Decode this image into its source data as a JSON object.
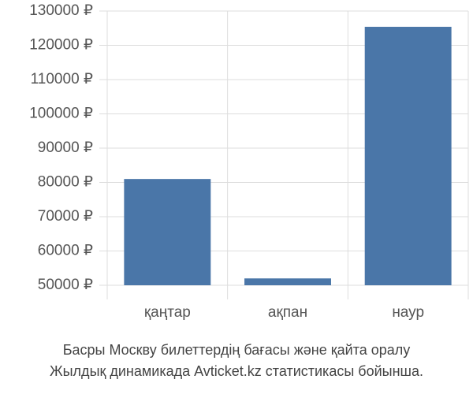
{
  "chart_data": {
    "type": "bar",
    "title": [
      "Басры Москву билеттердің бағасы және қайта оралу",
      "Жылдық динамикада Avticket.kz статистикасы бойынша."
    ],
    "categories": [
      "қаңтар",
      "ақпан",
      "наур"
    ],
    "values": [
      81000,
      52000,
      125400
    ],
    "color": "#4a76a8",
    "ylim": [
      50000,
      130000
    ],
    "yticks": [
      {
        "value": 50000,
        "label": "50000 ₽"
      },
      {
        "value": 60000,
        "label": "60000 ₽"
      },
      {
        "value": 70000,
        "label": "70000 ₽"
      },
      {
        "value": 80000,
        "label": "80000 ₽"
      },
      {
        "value": 90000,
        "label": "90000 ₽"
      },
      {
        "value": 100000,
        "label": "100000 ₽"
      },
      {
        "value": 110000,
        "label": "110000 ₽"
      },
      {
        "value": 120000,
        "label": "120000 ₽"
      },
      {
        "value": 130000,
        "label": "130000 ₽"
      }
    ],
    "grid": true
  }
}
